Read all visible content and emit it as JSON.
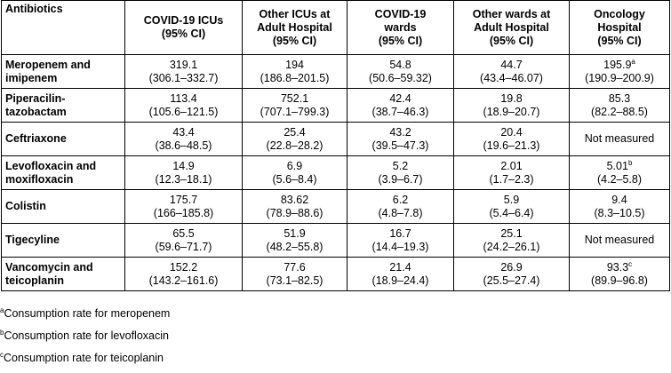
{
  "table": {
    "header": [
      [
        "Antibiotics"
      ],
      [
        "COVID-19 ICUs",
        "(95% CI)"
      ],
      [
        "Other ICUs at",
        "Adult Hospital",
        "(95% CI)"
      ],
      [
        "COVID-19",
        "wards",
        "(95% CI)"
      ],
      [
        "Other wards at",
        "Adult Hospital",
        "(95% CI)"
      ],
      [
        "Oncology",
        "Hospital",
        "(95% CI)"
      ]
    ],
    "rows": [
      {
        "name": [
          "Meropenem and",
          "imipenem"
        ],
        "cells": [
          {
            "value": "319.1",
            "ci": "(306.1–332.7)"
          },
          {
            "value": "194",
            "ci": "(186.8–201.5)"
          },
          {
            "value": "54.8",
            "ci": "(50.6–59.32)"
          },
          {
            "value": "44.7",
            "ci": "(43.4–46.07)"
          },
          {
            "value": "195.9",
            "sup": "a",
            "ci": "(190.9–200.9)"
          }
        ]
      },
      {
        "name": [
          "Piperacilin-",
          "tazobactam"
        ],
        "cells": [
          {
            "value": "113.4",
            "ci": "(105.6–121.5)"
          },
          {
            "value": "752.1",
            "ci": "(707.1–799.3)"
          },
          {
            "value": "42.4",
            "ci": "(38.7–46.3)"
          },
          {
            "value": "19.8",
            "ci": "(18.9–20.7)"
          },
          {
            "value": "85.3",
            "ci": "(82.2–88.5)"
          }
        ]
      },
      {
        "name": [
          "Ceftriaxone"
        ],
        "cells": [
          {
            "value": "43.4",
            "ci": "(38.6–48.5)"
          },
          {
            "value": "25.4",
            "ci": "(22.8–28.2)"
          },
          {
            "value": "43.2",
            "ci": "(39.5–47.3)"
          },
          {
            "value": "20.4",
            "ci": "(19.6–21.3)"
          },
          {
            "value": "Not measured"
          }
        ]
      },
      {
        "name": [
          "Levofloxacin and",
          "moxifloxacin"
        ],
        "cells": [
          {
            "value": "14.9",
            "ci": "(12.3–18.1)"
          },
          {
            "value": "6.9",
            "ci": "(5.6–8.4)"
          },
          {
            "value": "5.2",
            "ci": "(3.9–6.7)"
          },
          {
            "value": "2.01",
            "ci": "(1.7–2.3)"
          },
          {
            "value": "5.01",
            "sup": "b",
            "ci": "(4.2–5.8)"
          }
        ]
      },
      {
        "name": [
          "Colistin"
        ],
        "cells": [
          {
            "value": "175.7",
            "ci": "(166–185.8)"
          },
          {
            "value": "83.62",
            "ci": "(78.9–88.6)"
          },
          {
            "value": "6.2",
            "ci": "(4.8–7.8)"
          },
          {
            "value": "5.9",
            "ci": "(5.4–6.4)"
          },
          {
            "value": "9.4",
            "ci": "(8.3–10.5)"
          }
        ]
      },
      {
        "name": [
          "Tigecyline"
        ],
        "cells": [
          {
            "value": "65.5",
            "ci": "(59.6–71.7)"
          },
          {
            "value": "51.9",
            "ci": "(48.2–55.8)"
          },
          {
            "value": "16.7",
            "ci": "(14.4–19.3)"
          },
          {
            "value": "25.1",
            "ci": "(24.2–26.1)"
          },
          {
            "value": "Not measured"
          }
        ]
      },
      {
        "name": [
          "Vancomycin and",
          "teicoplanin"
        ],
        "cells": [
          {
            "value": "152.2",
            "ci": "(143.2–161.6)"
          },
          {
            "value": "77.6",
            "ci": "(73.1–82.5)"
          },
          {
            "value": "21.4",
            "ci": "(18.9–24.4)"
          },
          {
            "value": "26.9",
            "ci": "(25.5–27.4)"
          },
          {
            "value": "93.3",
            "sup": "c",
            "ci": "(89.9–96.8)"
          }
        ]
      }
    ]
  },
  "footnotes": [
    {
      "mark": "a",
      "text": "Consumption rate for meropenem"
    },
    {
      "mark": "b",
      "text": "Consumption rate for levofloxacin"
    },
    {
      "mark": "c",
      "text": "Consumption rate for teicoplanin"
    }
  ]
}
